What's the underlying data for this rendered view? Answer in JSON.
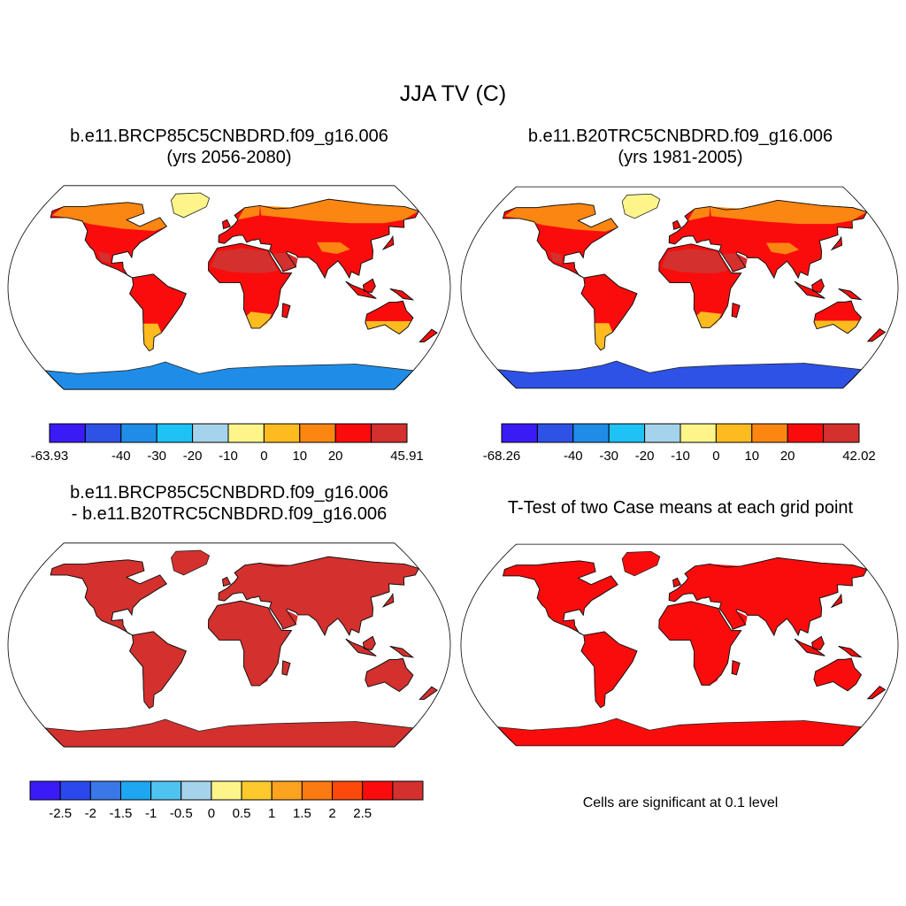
{
  "title": "JJA TV (C)",
  "panels": [
    {
      "title": "b.e11.BRCP85C5CNBDRD.f09_g16.006",
      "subtitle": "(yrs 2056-2080)"
    },
    {
      "title": "b.e11.B20TRC5CNBDRD.f09_g16.006",
      "subtitle": "(yrs 1981-2005)"
    },
    {
      "title": "b.e11.BRCP85C5CNBDRD.f09_g16.006",
      "subtitle": "- b.e11.B20TRC5CNBDRD.f09_g16.006"
    },
    {
      "title": "T-Test of two Case means at each grid point"
    }
  ],
  "note": "Cells are significant at 0.1 level",
  "colorbars": [
    {
      "colors": [
        "#3a1bf5",
        "#2e52e6",
        "#1f8de8",
        "#1ec2f5",
        "#a6d3ec",
        "#fdf58a",
        "#fdbb20",
        "#fb8612",
        "#fb0c0c",
        "#d3302e"
      ],
      "labels": [
        "-63.93",
        "-40",
        "-30",
        "-20",
        "-10",
        "0",
        "10",
        "20",
        "45.91"
      ],
      "label_boundaries": [
        0,
        2,
        3,
        4,
        5,
        6,
        7,
        8,
        10
      ]
    },
    {
      "colors": [
        "#3a1bf5",
        "#2e52e6",
        "#1f8de8",
        "#1ec2f5",
        "#a6d3ec",
        "#fdf58a",
        "#fdbb20",
        "#fb8612",
        "#fb0c0c",
        "#d3302e"
      ],
      "labels": [
        "-68.26",
        "-40",
        "-30",
        "-20",
        "-10",
        "0",
        "10",
        "20",
        "42.02"
      ],
      "label_boundaries": [
        0,
        2,
        3,
        4,
        5,
        6,
        7,
        8,
        10
      ]
    },
    {
      "colors": [
        "#3a1bf5",
        "#2a48eb",
        "#3a78e8",
        "#1ea6f0",
        "#4fc3f0",
        "#a6d3ec",
        "#fdf58a",
        "#fdca2e",
        "#fda320",
        "#fb7a12",
        "#fb4a0c",
        "#fb0c0c",
        "#d3302e"
      ],
      "labels": [
        "-2.5",
        "-2",
        "-1.5",
        "-1",
        "-0.5",
        "0",
        "0.5",
        "1",
        "1.5",
        "2",
        "2.5"
      ],
      "label_boundaries": [
        1,
        2,
        3,
        4,
        5,
        6,
        7,
        8,
        9,
        10,
        11
      ]
    }
  ],
  "map_fills": {
    "p1": {
      "land": "#fb0c0c",
      "north": "#fb8612",
      "hot": "#d3302e",
      "south": "#fdbb20",
      "greenland": "#fdf58a",
      "antarctica": "#1f8de8"
    },
    "p2": {
      "land": "#fb0c0c",
      "north": "#fb8612",
      "hot": "#d3302e",
      "south": "#fdbb20",
      "greenland": "#fdf58a",
      "antarctica": "#2e52e6"
    },
    "p3": {
      "land": "#d3302e",
      "north": "#d3302e",
      "hot": "#d3302e",
      "south": "#d3302e",
      "greenland": "#d3302e",
      "antarctica": "#d3302e"
    },
    "p4": {
      "land": "#fb0c0c",
      "north": "#fb0c0c",
      "hot": "#fb0c0c",
      "south": "#fb0c0c",
      "greenland": "#fb0c0c",
      "antarctica": "#fb0c0c"
    }
  }
}
